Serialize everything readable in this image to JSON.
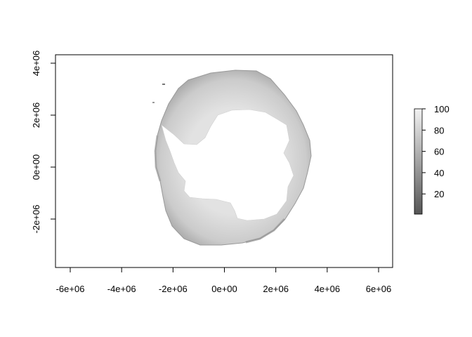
{
  "map": {
    "type": "raster",
    "title": "",
    "xlabel": "",
    "ylabel": "",
    "xlim": [
      -6600000.0,
      6600000.0
    ],
    "ylim": [
      -3900000.0,
      4300000.0
    ],
    "x_ticks": [
      {
        "value": -6000000,
        "label": "-6e+06"
      },
      {
        "value": -4000000,
        "label": "-4e+06"
      },
      {
        "value": -2000000,
        "label": "-2e+06"
      },
      {
        "value": 0,
        "label": "0e+00"
      },
      {
        "value": 2000000,
        "label": "2e+06"
      },
      {
        "value": 4000000,
        "label": "4e+06"
      },
      {
        "value": 6000000,
        "label": "6e+06"
      }
    ],
    "y_ticks": [
      {
        "value": -2000000,
        "label": "-2e+06"
      },
      {
        "value": 0,
        "label": "0e+00"
      },
      {
        "value": 2000000,
        "label": "2e+06"
      },
      {
        "value": 4000000,
        "label": "4e+06"
      }
    ],
    "legend": {
      "position": "right",
      "min": 1,
      "max": 100,
      "ticks": [
        {
          "value": 20,
          "label": "20"
        },
        {
          "value": 40,
          "label": "40"
        },
        {
          "value": 60,
          "label": "60"
        },
        {
          "value": 80,
          "label": "80"
        },
        {
          "value": 100,
          "label": "100"
        }
      ],
      "color_low": "#555555",
      "color_high": "#f2f2f2"
    },
    "colors": {
      "ice_band": "#d2d2d2",
      "ice_edge_dark": "#8f8f8f",
      "continent": "#ffffff",
      "axis": "#000000"
    }
  }
}
